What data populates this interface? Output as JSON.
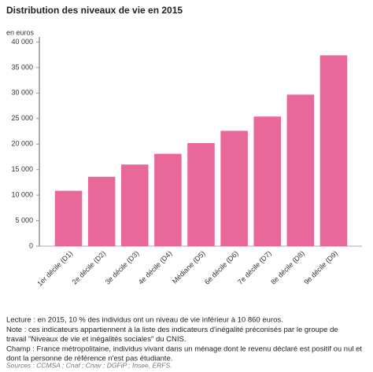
{
  "chart_data": {
    "type": "bar",
    "title": "Distribution des niveaux de vie en 2015",
    "y_label": "en euros",
    "categories": [
      "1er décile (D1)",
      "2e décile (D2)",
      "3e décile (D3)",
      "4e décile (D4)",
      "Médiane (D5)",
      "6e décile (D6)",
      "7e décile (D7)",
      "8e décile (D8)",
      "9e décile (D9)"
    ],
    "values": [
      10860,
      13600,
      16000,
      18100,
      20200,
      22600,
      25400,
      29700,
      37400
    ],
    "color": "#e8689a",
    "ylim": [
      0,
      41000
    ],
    "yticks": [
      0,
      {
        "value": 5000,
        "label": "5 000"
      },
      {
        "value": 10000,
        "label": "10 000"
      },
      {
        "value": 15000,
        "label": "15 000"
      },
      {
        "value": 20000,
        "label": "20 000"
      },
      {
        "value": 25000,
        "label": "25 000"
      },
      {
        "value": 30000,
        "label": "30 000"
      },
      {
        "value": 35000,
        "label": "35 000"
      },
      {
        "value": 40000,
        "label": "40 000"
      }
    ],
    "grid": false,
    "notes": [
      "Lecture : en 2015, 10 % des individus ont un niveau de vie inférieur à 10 860 euros.",
      "Note : ces indicateurs appartiennent à la liste des indicateurs d'inégalité préconisés par le groupe de",
      "travail \"Niveaux de vie et inégalités sociales\" du CNIS.",
      "Champ : France métropolitaine, individus vivant dans un ménage dont le revenu déclaré est positif ou nul et",
      "dont la personne de référence n'est pas étudiante."
    ],
    "source": "Sources : CCMSA ; Cnaf ; Cnav ; DGFiP ; Insee, ERFS."
  }
}
